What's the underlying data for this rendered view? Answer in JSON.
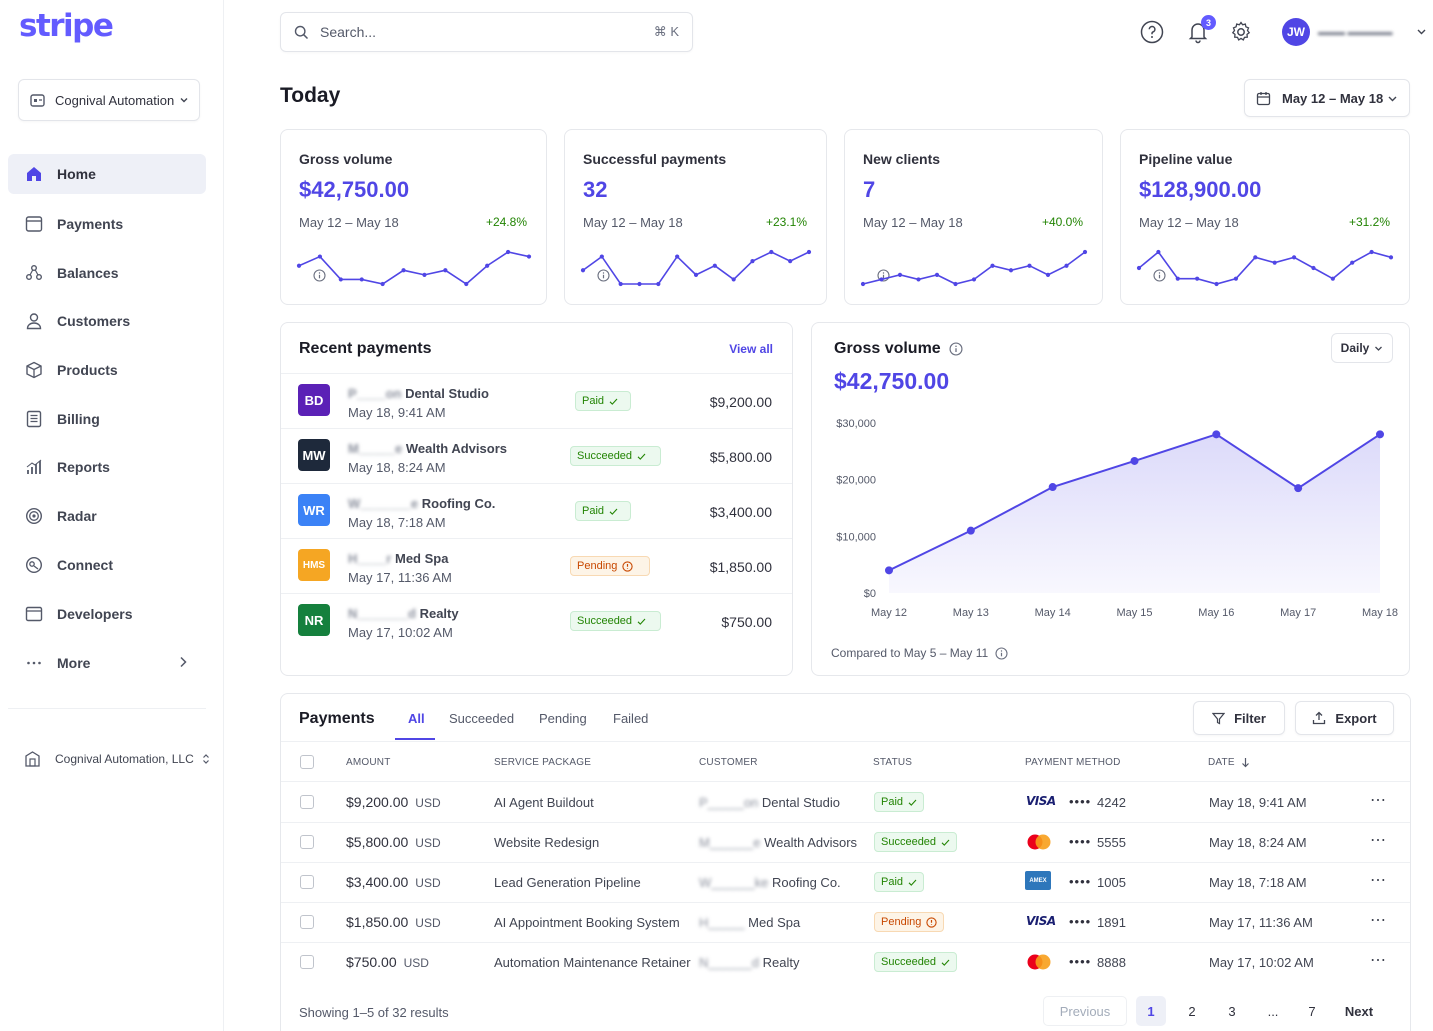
{
  "app": {
    "logo": "stripe"
  },
  "sidebar": {
    "account_name": "Cognival Automation",
    "items": [
      {
        "label": "Home",
        "icon": "home-icon",
        "active": true
      },
      {
        "label": "Payments",
        "icon": "payments-icon"
      },
      {
        "label": "Balances",
        "icon": "balances-icon"
      },
      {
        "label": "Customers",
        "icon": "customers-icon"
      },
      {
        "label": "Products",
        "icon": "products-icon"
      },
      {
        "label": "Billing",
        "icon": "billing-icon"
      },
      {
        "label": "Reports",
        "icon": "reports-icon"
      },
      {
        "label": "Radar",
        "icon": "radar-icon"
      },
      {
        "label": "Connect",
        "icon": "connect-icon"
      },
      {
        "label": "Developers",
        "icon": "developers-icon"
      },
      {
        "label": "More",
        "icon": "more-icon"
      }
    ],
    "org_name": "Cognival Automation, LLC"
  },
  "topbar": {
    "search_placeholder": "Search...",
    "search_shortcut": "⌘ K",
    "notification_count": "3",
    "user_initials": "JW"
  },
  "page": {
    "title": "Today",
    "date_range": "May 12 – May 18"
  },
  "stats": [
    {
      "title": "Gross volume",
      "value": "$42,750.00",
      "range": "May 12 – May 18",
      "change": "+24.8%",
      "spark": [
        6,
        8,
        3,
        3,
        2,
        5,
        4,
        5,
        2,
        6,
        9,
        8
      ]
    },
    {
      "title": "Successful payments",
      "value": "32",
      "range": "May 12 – May 18",
      "change": "+23.1%",
      "spark": [
        5,
        8,
        2,
        2,
        2,
        8,
        4,
        6,
        3,
        7,
        9,
        7,
        9
      ]
    },
    {
      "title": "New clients",
      "value": "7",
      "range": "May 12 – May 18",
      "change": "+40.0%",
      "spark": [
        2,
        3,
        4,
        3,
        4,
        2,
        3,
        6,
        5,
        6,
        4,
        6,
        9
      ]
    },
    {
      "title": "Pipeline value",
      "value": "$128,900.00",
      "range": "May 12 – May 18",
      "change": "+31.2%",
      "spark": [
        5,
        8,
        3,
        3,
        2,
        3,
        7,
        6,
        7,
        5,
        3,
        6,
        8,
        7
      ]
    }
  ],
  "recent": {
    "title": "Recent payments",
    "view_all": "View all",
    "rows": [
      {
        "initials": "BD",
        "color": "#5b21b6",
        "name": "Dental Studio",
        "name_prefix": "P____on",
        "date": "May 18, 9:41 AM",
        "status": "Paid",
        "status_type": "ok",
        "amount": "$9,200.00"
      },
      {
        "initials": "MW",
        "color": "#1e293b",
        "name": "Wealth Advisors",
        "name_prefix": "M_____e",
        "date": "May 18, 8:24 AM",
        "status": "Succeeded",
        "status_type": "ok",
        "amount": "$5,800.00"
      },
      {
        "initials": "WR",
        "color": "#3b82f6",
        "name": "Roofing Co.",
        "name_prefix": "W_______e",
        "date": "May 18, 7:18 AM",
        "status": "Paid",
        "status_type": "ok",
        "amount": "$3,400.00"
      },
      {
        "initials": "HMS",
        "color": "#f5a623",
        "name": "Med Spa",
        "name_prefix": "H____r",
        "date": "May 17, 11:36 AM",
        "status": "Pending",
        "status_type": "pend",
        "amount": "$1,850.00"
      },
      {
        "initials": "NR",
        "color": "#15803d",
        "name": "Realty",
        "name_prefix": "N_______d",
        "date": "May 17, 10:02 AM",
        "status": "Succeeded",
        "status_type": "ok",
        "amount": "$750.00"
      }
    ]
  },
  "gross_volume": {
    "title": "Gross volume",
    "value": "$42,750.00",
    "interval": "Daily",
    "comparison": "Compared to May 5 – May 11"
  },
  "chart_data": {
    "type": "area",
    "x": [
      "May 12",
      "May 13",
      "May 14",
      "May 15",
      "May 16",
      "May 17",
      "May 18"
    ],
    "series": [
      {
        "values": [
          4000,
          11000,
          18700,
          23300,
          28000,
          18500,
          28000
        ]
      }
    ],
    "yticks": [
      "$0",
      "$10,000",
      "$20,000",
      "$30,000"
    ],
    "ylim": [
      0,
      30000
    ],
    "color": "#5046e5"
  },
  "payments": {
    "title": "Payments",
    "tabs": [
      "All",
      "Succeeded",
      "Pending",
      "Failed"
    ],
    "filter_label": "Filter",
    "export_label": "Export",
    "columns": [
      "AMOUNT",
      "SERVICE PACKAGE",
      "CUSTOMER",
      "STATUS",
      "PAYMENT METHOD",
      "DATE"
    ],
    "rows": [
      {
        "amount": "$9,200.00",
        "currency": "USD",
        "package": "AI Agent Buildout",
        "customer": "Dental Studio",
        "customer_prefix": "P_____on",
        "status": "Paid",
        "status_type": "ok",
        "brand": "visa",
        "last4": "4242",
        "date": "May 18, 9:41 AM"
      },
      {
        "amount": "$5,800.00",
        "currency": "USD",
        "package": "Website Redesign",
        "customer": "Wealth Advisors",
        "customer_prefix": "M______e",
        "status": "Succeeded",
        "status_type": "ok",
        "brand": "mastercard",
        "last4": "5555",
        "date": "May 18, 8:24 AM"
      },
      {
        "amount": "$3,400.00",
        "currency": "USD",
        "package": "Lead Generation Pipeline",
        "customer": "Roofing Co.",
        "customer_prefix": "W______ke",
        "status": "Paid",
        "status_type": "ok",
        "brand": "amex",
        "last4": "1005",
        "date": "May 18, 7:18 AM"
      },
      {
        "amount": "$1,850.00",
        "currency": "USD",
        "package": "AI Appointment Booking System",
        "customer": "Med Spa",
        "customer_prefix": "H_____",
        "status": "Pending",
        "status_type": "pend",
        "brand": "visa",
        "last4": "1891",
        "date": "May 17, 11:36 AM"
      },
      {
        "amount": "$750.00",
        "currency": "USD",
        "package": "Automation Maintenance Retainer",
        "customer": "Realty",
        "customer_prefix": "N______d",
        "status": "Succeeded",
        "status_type": "ok",
        "brand": "mastercard",
        "last4": "8888",
        "date": "May 17, 10:02 AM"
      }
    ],
    "card_mask": "••••",
    "showing": "Showing 1–5 of 32 results",
    "pagination": {
      "previous": "Previous",
      "pages": [
        "1",
        "2",
        "3",
        "...",
        "7"
      ],
      "next": "Next"
    }
  },
  "icons": {
    "amex_label": "AMEX",
    "visa_label": "VISA"
  }
}
